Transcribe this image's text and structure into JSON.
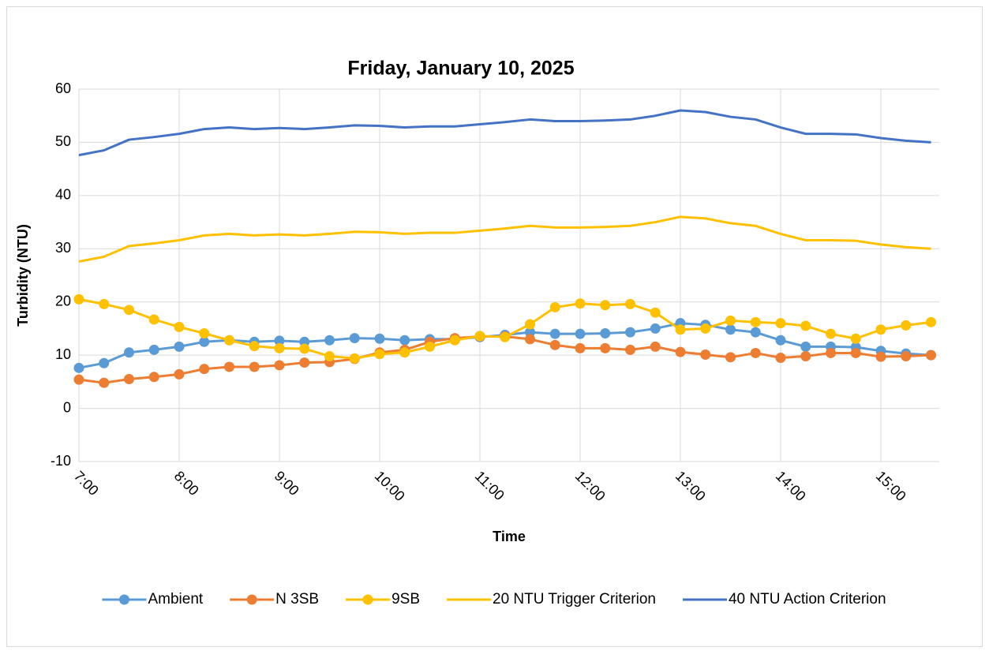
{
  "chart_data": {
    "type": "line",
    "title": "Friday, January 10, 2025",
    "x_label": "Time",
    "y_label": "Turbidity (NTU)",
    "categories": [
      "7:00",
      null,
      null,
      null,
      "8:00",
      null,
      null,
      null,
      "9:00",
      null,
      null,
      null,
      "10:00",
      null,
      null,
      null,
      "11:00",
      null,
      null,
      null,
      "12:00",
      null,
      null,
      null,
      "13:00",
      null,
      null,
      null,
      "14:00",
      null,
      null,
      null,
      "15:00",
      null,
      null
    ],
    "ylim": [
      -10,
      60
    ],
    "yticks": [
      -10,
      0,
      10,
      20,
      30,
      40,
      50,
      60
    ],
    "grid": true,
    "legend": "bottom",
    "series": [
      {
        "name": "Ambient",
        "color": "#5b9bd5",
        "markers": true,
        "values": [
          7.6,
          8.5,
          10.5,
          11,
          11.6,
          12.5,
          12.8,
          12.5,
          12.7,
          12.5,
          12.8,
          13.2,
          13.1,
          12.8,
          13,
          13,
          13.4,
          13.8,
          14.3,
          14,
          14,
          14.1,
          14.3,
          15,
          16,
          15.7,
          14.8,
          14.3,
          12.8,
          11.6,
          11.6,
          11.5,
          10.8,
          10.3,
          10
        ]
      },
      {
        "name": "N 3SB",
        "color": "#ed7d31",
        "markers": true,
        "values": [
          5.4,
          4.8,
          5.5,
          5.9,
          6.4,
          7.4,
          7.8,
          7.8,
          8.1,
          8.6,
          8.7,
          9.3,
          10.5,
          11,
          12.5,
          13.2,
          13.5,
          13.5,
          13,
          11.9,
          11.3,
          11.3,
          11,
          11.6,
          10.6,
          10.1,
          9.6,
          10.4,
          9.5,
          9.8,
          10.4,
          10.4,
          9.7,
          9.8,
          10
        ]
      },
      {
        "name": "9SB",
        "color": "#ffc000",
        "markers": true,
        "values": [
          20.5,
          19.6,
          18.5,
          16.7,
          15.3,
          14.1,
          12.8,
          11.7,
          11.3,
          11.2,
          9.8,
          9.4,
          10.2,
          10.5,
          11.6,
          12.8,
          13.6,
          13.4,
          15.8,
          19,
          19.7,
          19.4,
          19.6,
          18,
          14.8,
          15,
          16.5,
          16.2,
          16,
          15.5,
          14,
          13.1,
          14.8,
          15.6,
          16.2
        ]
      },
      {
        "name": "20 NTU Trigger Criterion",
        "color": "#ffc000",
        "markers": false,
        "values": [
          27.6,
          28.5,
          30.5,
          31,
          31.6,
          32.5,
          32.8,
          32.5,
          32.7,
          32.5,
          32.8,
          33.2,
          33.1,
          32.8,
          33,
          33,
          33.4,
          33.8,
          34.3,
          34,
          34,
          34.1,
          34.3,
          35,
          36,
          35.7,
          34.8,
          34.3,
          32.8,
          31.6,
          31.6,
          31.5,
          30.8,
          30.3,
          30
        ]
      },
      {
        "name": "40 NTU Action Criterion",
        "color": "#4472c4",
        "markers": false,
        "values": [
          47.6,
          48.5,
          50.5,
          51,
          51.6,
          52.5,
          52.8,
          52.5,
          52.7,
          52.5,
          52.8,
          53.2,
          53.1,
          52.8,
          53,
          53,
          53.4,
          53.8,
          54.3,
          54,
          54,
          54.1,
          54.3,
          55,
          56,
          55.7,
          54.8,
          54.3,
          52.8,
          51.6,
          51.6,
          51.5,
          50.8,
          50.3,
          50
        ]
      }
    ]
  }
}
